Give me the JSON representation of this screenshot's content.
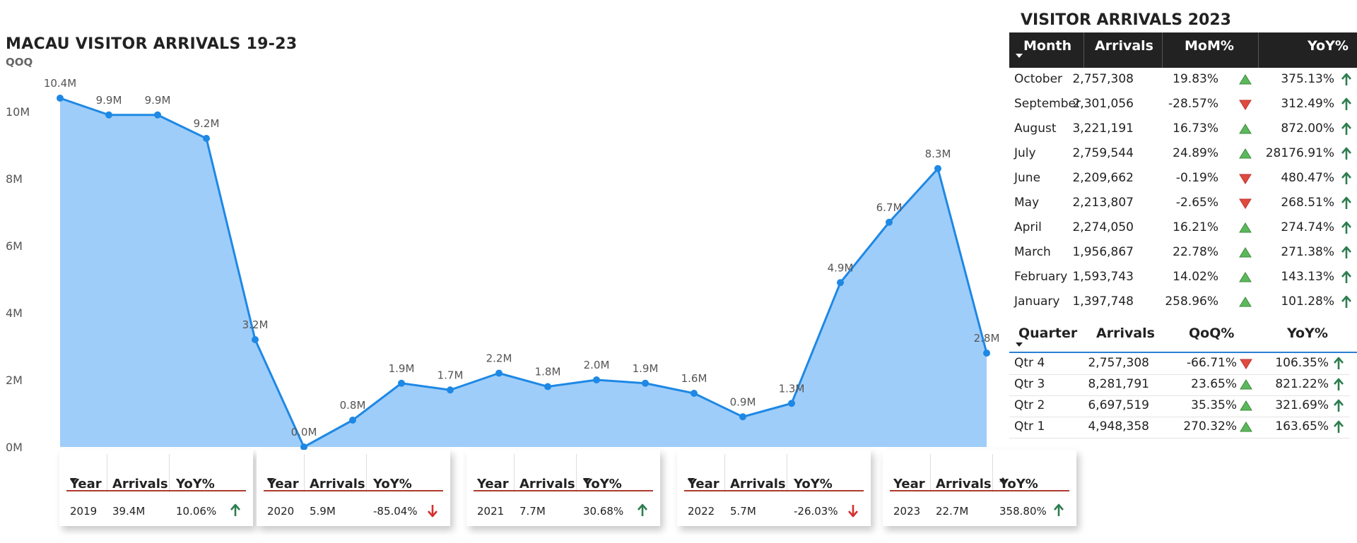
{
  "chart_title": "MACAU VISITOR ARRIVALS 19-23",
  "chart_subtitle": "QOQ",
  "chart_data": {
    "type": "area",
    "title": "MACAU VISITOR ARRIVALS 19-23",
    "subtitle": "QOQ",
    "xlabel": "",
    "ylabel": "",
    "ylim": [
      0,
      10400000
    ],
    "y_ticks": [
      0,
      2000000,
      4000000,
      6000000,
      8000000,
      10000000
    ],
    "y_tick_labels": [
      "0M",
      "2M",
      "4M",
      "6M",
      "8M",
      "10M"
    ],
    "values": [
      10400000,
      9900000,
      9900000,
      9200000,
      3200000,
      0,
      800000,
      1900000,
      1700000,
      2200000,
      1800000,
      2000000,
      1900000,
      1600000,
      900000,
      1300000,
      4900000,
      6700000,
      8300000,
      2800000
    ],
    "data_labels": [
      "10.4M",
      "9.9M",
      "9.9M",
      "9.2M",
      "3.2M",
      "0.0M",
      "0.8M",
      "1.9M",
      "1.7M",
      "2.2M",
      "1.8M",
      "2.0M",
      "1.9M",
      "1.6M",
      "0.9M",
      "1.3M",
      "4.9M",
      "6.7M",
      "8.3M",
      "2.8M"
    ],
    "colors": {
      "line": "#1e88e5",
      "fill": "#9fcdf9"
    },
    "grid": false
  },
  "year_cards": [
    {
      "headers": {
        "year": "Year",
        "arrivals": "Arrivals",
        "yoy": "YoY%"
      },
      "sort": "year-down",
      "year": "2019",
      "arrivals": "39.4M",
      "yoy": "10.06%",
      "trend": "up"
    },
    {
      "headers": {
        "year": "Year",
        "arrivals": "Arrivals",
        "yoy": "YoY%"
      },
      "sort": "year-down",
      "year": "2020",
      "arrivals": "5.9M",
      "yoy": "-85.04%",
      "trend": "down"
    },
    {
      "headers": {
        "year": "Year",
        "arrivals": "Arrivals",
        "yoy": "YoY%"
      },
      "sort": "yoy-down",
      "year": "2021",
      "arrivals": "7.7M",
      "yoy": "30.68%",
      "trend": "up"
    },
    {
      "headers": {
        "year": "Year",
        "arrivals": "Arrivals",
        "yoy": "YoY%"
      },
      "sort": "year-down",
      "year": "2022",
      "arrivals": "5.7M",
      "yoy": "-26.03%",
      "trend": "down"
    },
    {
      "headers": {
        "year": "Year",
        "arrivals": "Arrivals",
        "yoy": "YoY%"
      },
      "sort": "yoy-up",
      "year": "2023",
      "arrivals": "22.7M",
      "yoy": "358.80%",
      "trend": "up"
    }
  ],
  "monthly_table": {
    "title": "VISITOR ARRIVALS 2023",
    "headers": {
      "month": "Month",
      "arrivals": "Arrivals",
      "mom": "MoM%",
      "yoy": "YoY%"
    },
    "rows": [
      {
        "month": "October",
        "arrivals": "2,757,308",
        "mom": "19.83%",
        "mom_trend": "up",
        "yoy": "375.13%"
      },
      {
        "month": "September",
        "arrivals": "2,301,056",
        "mom": "-28.57%",
        "mom_trend": "down",
        "yoy": "312.49%"
      },
      {
        "month": "August",
        "arrivals": "3,221,191",
        "mom": "16.73%",
        "mom_trend": "up",
        "yoy": "872.00%"
      },
      {
        "month": "July",
        "arrivals": "2,759,544",
        "mom": "24.89%",
        "mom_trend": "up",
        "yoy": "28176.91%"
      },
      {
        "month": "June",
        "arrivals": "2,209,662",
        "mom": "-0.19%",
        "mom_trend": "down",
        "yoy": "480.47%"
      },
      {
        "month": "May",
        "arrivals": "2,213,807",
        "mom": "-2.65%",
        "mom_trend": "down",
        "yoy": "268.51%"
      },
      {
        "month": "April",
        "arrivals": "2,274,050",
        "mom": "16.21%",
        "mom_trend": "up",
        "yoy": "274.74%"
      },
      {
        "month": "March",
        "arrivals": "1,956,867",
        "mom": "22.78%",
        "mom_trend": "up",
        "yoy": "271.38%"
      },
      {
        "month": "February",
        "arrivals": "1,593,743",
        "mom": "14.02%",
        "mom_trend": "up",
        "yoy": "143.13%"
      },
      {
        "month": "January",
        "arrivals": "1,397,748",
        "mom": "258.96%",
        "mom_trend": "up",
        "yoy": "101.28%"
      }
    ]
  },
  "quarterly_table": {
    "headers": {
      "quarter": "Quarter",
      "arrivals": "Arrivals",
      "qoq": "QoQ%",
      "yoy": "YoY%"
    },
    "rows": [
      {
        "quarter": "Qtr 4",
        "arrivals": "2,757,308",
        "qoq": "-66.71%",
        "qoq_trend": "down",
        "yoy": "106.35%"
      },
      {
        "quarter": "Qtr 3",
        "arrivals": "8,281,791",
        "qoq": "23.65%",
        "qoq_trend": "up",
        "yoy": "821.22%"
      },
      {
        "quarter": "Qtr 2",
        "arrivals": "6,697,519",
        "qoq": "35.35%",
        "qoq_trend": "up",
        "yoy": "321.69%"
      },
      {
        "quarter": "Qtr 1",
        "arrivals": "4,948,358",
        "qoq": "270.32%",
        "qoq_trend": "up",
        "yoy": "163.65%"
      }
    ]
  },
  "colors": {
    "up_triangle": "#5cb85c",
    "down_triangle": "#e04b3f",
    "up_arrow": "#2e7d4f",
    "down_arrow": "#d32f2f",
    "accent_line": "#b03a2e"
  }
}
